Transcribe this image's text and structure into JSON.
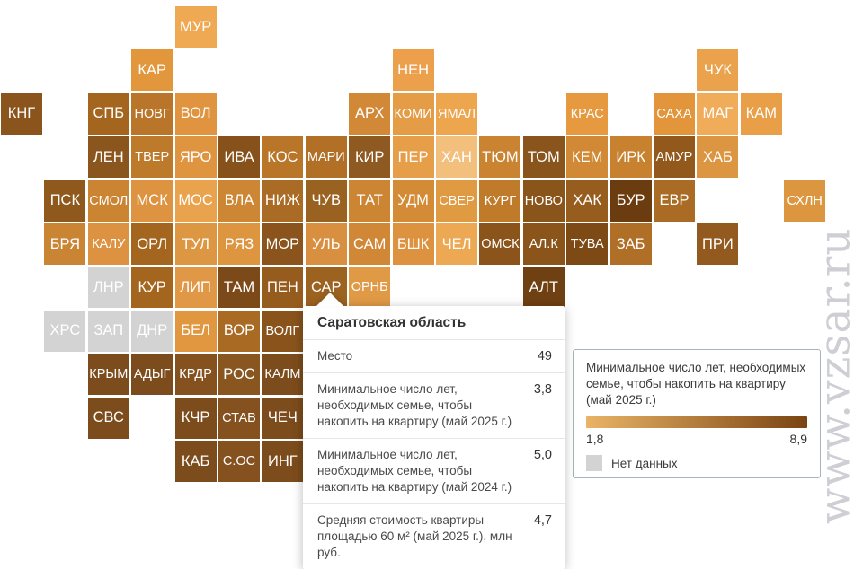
{
  "watermark": "www.vzsar.ru",
  "tooltip": {
    "title": "Саратовская область",
    "rows": [
      {
        "label": "Место",
        "value": "49"
      },
      {
        "label": "Минимальное число лет, необходимых семье, чтобы накопить на квартиру (май 2025 г.)",
        "value": "3,8"
      },
      {
        "label": "Минимальное число лет, необходимых семье, чтобы накопить на квартиру (май 2024 г.)",
        "value": "5,0"
      },
      {
        "label": "Средняя стоимость квартиры площадью 60 м² (май 2025 г.), млн руб.",
        "value": "4,7"
      }
    ]
  },
  "legend": {
    "title": "Минимальное число лет, необходимых семье, чтобы накопить на квартиру (май 2025 г.)",
    "scale_min": "1,8",
    "scale_max": "8,9",
    "gradient_start": "#e9b466",
    "gradient_end": "#7a4412",
    "no_data_label": "Нет данных",
    "no_data_color": "#d3d3d3"
  },
  "chart_data": {
    "type": "heatmap",
    "subtype": "tile-cartogram-of-russian-regions",
    "title": "Минимальное число лет, необходимых семье, чтобы накопить на квартиру (май 2025 г.)",
    "value_range": [
      1.8,
      8.9
    ],
    "legend_position": "bottom-right",
    "selected_region": {
      "code": "САР",
      "name": "Саратовская область",
      "rank": 49,
      "years_to_save_may_2025": 3.8,
      "years_to_save_may_2024": 5.0,
      "avg_flat_price_60m2_mln_rub_may_2025": 4.7
    },
    "tiles": [
      {
        "label": "МУР",
        "row": 0,
        "col": 4,
        "color": "#efa953"
      },
      {
        "label": "КАР",
        "row": 1,
        "col": 3,
        "color": "#e3973d"
      },
      {
        "label": "НЕН",
        "row": 1,
        "col": 9,
        "color": "#eca04b"
      },
      {
        "label": "ЧУК",
        "row": 1,
        "col": 16,
        "color": "#eaa34c"
      },
      {
        "label": "КНГ",
        "row": 2,
        "col": 0,
        "color": "#8a541c"
      },
      {
        "label": "СПБ",
        "row": 2,
        "col": 2,
        "color": "#a4661f"
      },
      {
        "label": "НОВГ",
        "row": 2,
        "col": 3,
        "color": "#b9762a"
      },
      {
        "label": "ВОЛ",
        "row": 2,
        "col": 4,
        "color": "#e09440"
      },
      {
        "label": "АРХ",
        "row": 2,
        "col": 8,
        "color": "#d18837"
      },
      {
        "label": "КОМИ",
        "row": 2,
        "col": 9,
        "color": "#e59c46"
      },
      {
        "label": "ЯМАЛ",
        "row": 2,
        "col": 10,
        "color": "#eda54e"
      },
      {
        "label": "КРАС",
        "row": 2,
        "col": 13,
        "color": "#e6993f"
      },
      {
        "label": "САХА",
        "row": 2,
        "col": 15,
        "color": "#e2953a"
      },
      {
        "label": "МАГ",
        "row": 2,
        "col": 16,
        "color": "#f0ac58"
      },
      {
        "label": "КАМ",
        "row": 2,
        "col": 17,
        "color": "#e99f47"
      },
      {
        "label": "ЛЕН",
        "row": 3,
        "col": 2,
        "color": "#8b561d"
      },
      {
        "label": "ТВЕР",
        "row": 3,
        "col": 3,
        "color": "#bd7a2b"
      },
      {
        "label": "ЯРО",
        "row": 3,
        "col": 4,
        "color": "#df9540"
      },
      {
        "label": "ИВА",
        "row": 3,
        "col": 5,
        "color": "#86511a"
      },
      {
        "label": "КОС",
        "row": 3,
        "col": 6,
        "color": "#b97629"
      },
      {
        "label": "МАРИ",
        "row": 3,
        "col": 7,
        "color": "#b17026"
      },
      {
        "label": "КИР",
        "row": 3,
        "col": 8,
        "color": "#8f5a22"
      },
      {
        "label": "ПЕР",
        "row": 3,
        "col": 9,
        "color": "#e79e49"
      },
      {
        "label": "ХАН",
        "row": 3,
        "col": 10,
        "color": "#f2bf7c"
      },
      {
        "label": "ТЮМ",
        "row": 3,
        "col": 11,
        "color": "#c98331"
      },
      {
        "label": "ТОМ",
        "row": 3,
        "col": 12,
        "color": "#8a551c"
      },
      {
        "label": "КЕМ",
        "row": 3,
        "col": 13,
        "color": "#d18936"
      },
      {
        "label": "ИРК",
        "row": 3,
        "col": 14,
        "color": "#c8822f"
      },
      {
        "label": "АМУР",
        "row": 3,
        "col": 15,
        "color": "#93591c"
      },
      {
        "label": "ХАБ",
        "row": 3,
        "col": 16,
        "color": "#dc9540"
      },
      {
        "label": "ПСК",
        "row": 4,
        "col": 1,
        "color": "#8f581d"
      },
      {
        "label": "СМОЛ",
        "row": 4,
        "col": 2,
        "color": "#ca8432"
      },
      {
        "label": "МСК",
        "row": 4,
        "col": 3,
        "color": "#dd9340"
      },
      {
        "label": "МОС",
        "row": 4,
        "col": 4,
        "color": "#e9a34d"
      },
      {
        "label": "ВЛА",
        "row": 4,
        "col": 5,
        "color": "#cd8633"
      },
      {
        "label": "НИЖ",
        "row": 4,
        "col": 6,
        "color": "#aa6b24"
      },
      {
        "label": "ЧУВ",
        "row": 4,
        "col": 7,
        "color": "#9a6220"
      },
      {
        "label": "ТАТ",
        "row": 4,
        "col": 8,
        "color": "#cc8533"
      },
      {
        "label": "УДМ",
        "row": 4,
        "col": 9,
        "color": "#d38b36"
      },
      {
        "label": "СВЕР",
        "row": 4,
        "col": 10,
        "color": "#e09a42"
      },
      {
        "label": "КУРГ",
        "row": 4,
        "col": 11,
        "color": "#c07b2a"
      },
      {
        "label": "НОВО",
        "row": 4,
        "col": 12,
        "color": "#8a551a"
      },
      {
        "label": "ХАК",
        "row": 4,
        "col": 13,
        "color": "#965d1e"
      },
      {
        "label": "БУР",
        "row": 4,
        "col": 14,
        "color": "#6b3c10"
      },
      {
        "label": "ЕВР",
        "row": 4,
        "col": 15,
        "color": "#aa6c24"
      },
      {
        "label": "СХЛН",
        "row": 4,
        "col": 18,
        "color": "#dd9640"
      },
      {
        "label": "БРЯ",
        "row": 5,
        "col": 1,
        "color": "#c98434"
      },
      {
        "label": "КАЛУ",
        "row": 5,
        "col": 2,
        "color": "#dc9240"
      },
      {
        "label": "ОРЛ",
        "row": 5,
        "col": 3,
        "color": "#a4661f"
      },
      {
        "label": "ТУЛ",
        "row": 5,
        "col": 4,
        "color": "#dd9742"
      },
      {
        "label": "РЯЗ",
        "row": 5,
        "col": 5,
        "color": "#dd9540"
      },
      {
        "label": "МОР",
        "row": 5,
        "col": 6,
        "color": "#8a541c"
      },
      {
        "label": "УЛЬ",
        "row": 5,
        "col": 7,
        "color": "#d89040"
      },
      {
        "label": "САМ",
        "row": 5,
        "col": 8,
        "color": "#d08837"
      },
      {
        "label": "БШК",
        "row": 5,
        "col": 9,
        "color": "#dc923e"
      },
      {
        "label": "ЧЕЛ",
        "row": 5,
        "col": 10,
        "color": "#eca852"
      },
      {
        "label": "ОМСК",
        "row": 5,
        "col": 11,
        "color": "#8a541a"
      },
      {
        "label": "АЛ.К",
        "row": 5,
        "col": 12,
        "color": "#8a541a"
      },
      {
        "label": "ТУВА",
        "row": 5,
        "col": 13,
        "color": "#7d4a16"
      },
      {
        "label": "ЗАБ",
        "row": 5,
        "col": 14,
        "color": "#af6f26"
      },
      {
        "label": "ПРИ",
        "row": 5,
        "col": 16,
        "color": "#925a1e"
      },
      {
        "label": "ЛНР",
        "row": 6,
        "col": 2,
        "color": "#d3d3d3",
        "no_data": true
      },
      {
        "label": "КУР",
        "row": 6,
        "col": 3,
        "color": "#a4661f"
      },
      {
        "label": "ЛИП",
        "row": 6,
        "col": 4,
        "color": "#e09847"
      },
      {
        "label": "ТАМ",
        "row": 6,
        "col": 5,
        "color": "#7c4a18"
      },
      {
        "label": "ПЕН",
        "row": 6,
        "col": 6,
        "color": "#955c1e"
      },
      {
        "label": "САР",
        "row": 6,
        "col": 7,
        "color": "#9c621f"
      },
      {
        "label": "ОРНБ",
        "row": 6,
        "col": 8,
        "color": "#e09a45"
      },
      {
        "label": "АЛТ",
        "row": 6,
        "col": 12,
        "color": "#6f4012"
      },
      {
        "label": "ХРС",
        "row": 7,
        "col": 1,
        "color": "#d3d3d3",
        "no_data": true
      },
      {
        "label": "ЗАП",
        "row": 7,
        "col": 2,
        "color": "#d3d3d3",
        "no_data": true
      },
      {
        "label": "ДНР",
        "row": 7,
        "col": 3,
        "color": "#d3d3d3",
        "no_data": true
      },
      {
        "label": "БЕЛ",
        "row": 7,
        "col": 4,
        "color": "#e0973f"
      },
      {
        "label": "ВОР",
        "row": 7,
        "col": 5,
        "color": "#a96b24"
      },
      {
        "label": "ВОЛГ",
        "row": 7,
        "col": 6,
        "color": "#8a531c"
      },
      {
        "label": "КРЫМ",
        "row": 8,
        "col": 2,
        "color": "#7d4c1c"
      },
      {
        "label": "АДЫГ",
        "row": 8,
        "col": 3,
        "color": "#7d4c1c"
      },
      {
        "label": "КРДР",
        "row": 8,
        "col": 4,
        "color": "#84511f"
      },
      {
        "label": "РОС",
        "row": 8,
        "col": 5,
        "color": "#8a561f"
      },
      {
        "label": "КАЛМ",
        "row": 8,
        "col": 6,
        "color": "#7d4c1c"
      },
      {
        "label": "СВС",
        "row": 9,
        "col": 2,
        "color": "#7d4c1c"
      },
      {
        "label": "КЧР",
        "row": 9,
        "col": 4,
        "color": "#7d4c1c"
      },
      {
        "label": "СТАВ",
        "row": 9,
        "col": 5,
        "color": "#84511f"
      },
      {
        "label": "ЧЕЧ",
        "row": 9,
        "col": 6,
        "color": "#7d4c1c"
      },
      {
        "label": "КАБ",
        "row": 10,
        "col": 4,
        "color": "#7d4c1c"
      },
      {
        "label": "С.ОС",
        "row": 10,
        "col": 5,
        "color": "#84511f"
      },
      {
        "label": "ИНГ",
        "row": 10,
        "col": 6,
        "color": "#7d4c1c"
      }
    ]
  }
}
